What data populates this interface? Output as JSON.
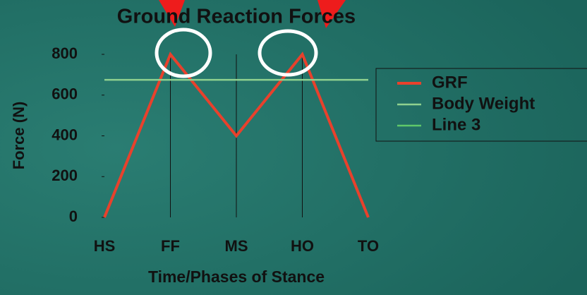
{
  "chart_data": {
    "type": "line",
    "title": "Ground Reaction Forces",
    "x_label": "Time/Phases of Stance",
    "y_label": "Force (N)",
    "categories": [
      "HS",
      "FF",
      "MS",
      "HO",
      "TO"
    ],
    "series": [
      {
        "name": "GRF",
        "color": "#e8412c",
        "values": [
          0,
          800,
          400,
          800,
          0
        ]
      },
      {
        "name": "Body Weight",
        "color": "#8fd18f",
        "values": [
          675,
          675,
          675,
          675,
          675
        ]
      },
      {
        "name": "Line 3",
        "color": "#5fc86a",
        "values": [
          null,
          null,
          null,
          null,
          null
        ]
      }
    ],
    "ylim": [
      0,
      800
    ],
    "yticks": [
      0,
      200,
      400,
      600,
      800
    ],
    "grid": true
  }
}
